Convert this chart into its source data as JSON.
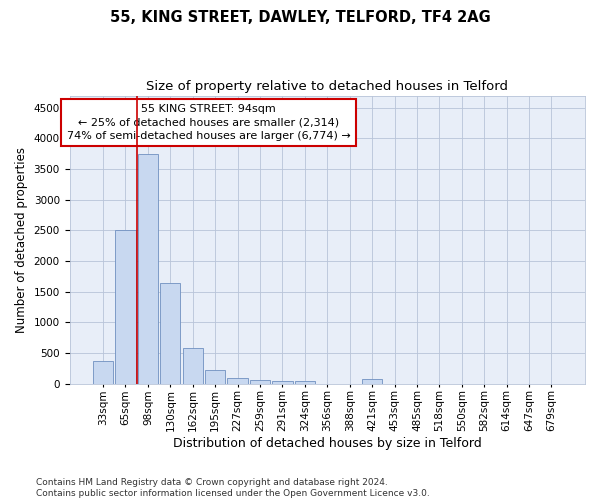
{
  "title1": "55, KING STREET, DAWLEY, TELFORD, TF4 2AG",
  "title2": "Size of property relative to detached houses in Telford",
  "xlabel": "Distribution of detached houses by size in Telford",
  "ylabel": "Number of detached properties",
  "categories": [
    "33sqm",
    "65sqm",
    "98sqm",
    "130sqm",
    "162sqm",
    "195sqm",
    "227sqm",
    "259sqm",
    "291sqm",
    "324sqm",
    "356sqm",
    "388sqm",
    "421sqm",
    "453sqm",
    "485sqm",
    "518sqm",
    "550sqm",
    "582sqm",
    "614sqm",
    "647sqm",
    "679sqm"
  ],
  "values": [
    370,
    2500,
    3750,
    1640,
    590,
    225,
    100,
    65,
    50,
    40,
    0,
    0,
    70,
    0,
    0,
    0,
    0,
    0,
    0,
    0,
    0
  ],
  "bar_color": "#c8d8f0",
  "bar_edge_color": "#7090c0",
  "red_line_bar_index": 2,
  "annotation_text": "55 KING STREET: 94sqm\n← 25% of detached houses are smaller (2,314)\n74% of semi-detached houses are larger (6,774) →",
  "annotation_box_color": "#ffffff",
  "annotation_box_edge_color": "#cc0000",
  "ylim": [
    0,
    4700
  ],
  "yticks": [
    0,
    500,
    1000,
    1500,
    2000,
    2500,
    3000,
    3500,
    4000,
    4500
  ],
  "bg_color": "#e8eef8",
  "grid_color": "#b8c4d8",
  "footer_text": "Contains HM Land Registry data © Crown copyright and database right 2024.\nContains public sector information licensed under the Open Government Licence v3.0.",
  "title1_fontsize": 10.5,
  "title2_fontsize": 9.5,
  "xlabel_fontsize": 9,
  "ylabel_fontsize": 8.5,
  "tick_fontsize": 7.5,
  "annotation_fontsize": 8,
  "footer_fontsize": 6.5
}
